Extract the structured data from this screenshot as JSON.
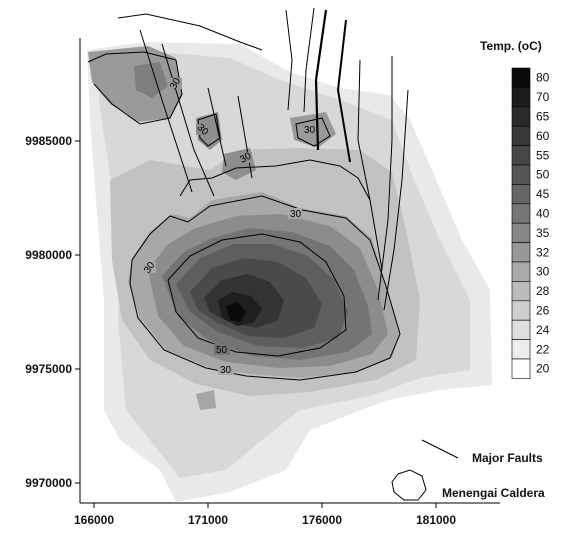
{
  "legend": {
    "title": "Temp. (oC)",
    "classes": [
      {
        "label": "80",
        "color": "#0a0a0a"
      },
      {
        "label": "70",
        "color": "#1c1c1c"
      },
      {
        "label": "65",
        "color": "#2a2a2a"
      },
      {
        "label": "60",
        "color": "#383838"
      },
      {
        "label": "55",
        "color": "#474747"
      },
      {
        "label": "50",
        "color": "#565656"
      },
      {
        "label": "45",
        "color": "#666666"
      },
      {
        "label": "40",
        "color": "#767676"
      },
      {
        "label": "35",
        "color": "#878787"
      },
      {
        "label": "32",
        "color": "#989898"
      },
      {
        "label": "30",
        "color": "#aaaaaa"
      },
      {
        "label": "28",
        "color": "#bcbcbc"
      },
      {
        "label": "26",
        "color": "#cecece"
      },
      {
        "label": "24",
        "color": "#dedede"
      },
      {
        "label": "22",
        "color": "#eeeeee"
      },
      {
        "label": "20",
        "color": "#ffffff"
      }
    ]
  },
  "axes": {
    "x_ticks": [
      "166000",
      "171000",
      "176000",
      "181000"
    ],
    "y_ticks": [
      "9985000",
      "9980000",
      "9975000",
      "9970000"
    ]
  },
  "contour_labels": [
    "30",
    "30",
    "30",
    "30",
    "30",
    "30",
    "50",
    "30"
  ],
  "key": {
    "faults_label": "Major Faults",
    "caldera_label": "Menengai Caldera"
  }
}
